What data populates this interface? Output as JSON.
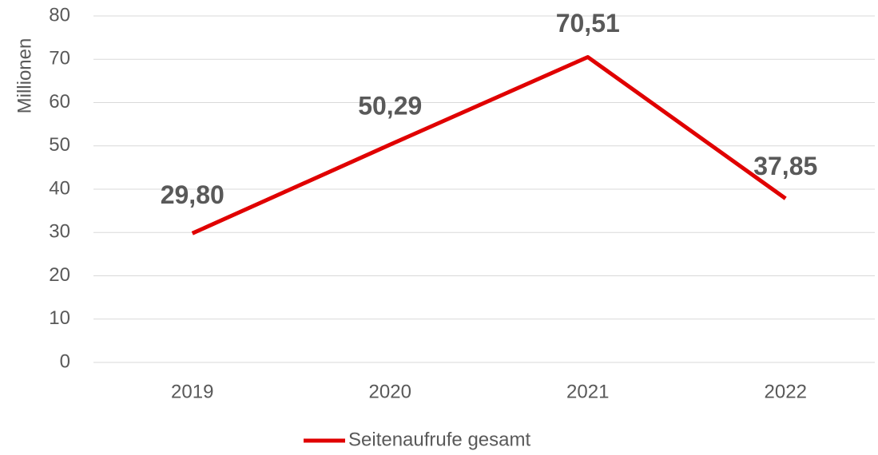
{
  "chart_data": {
    "type": "line",
    "y_label": "Millionen",
    "categories": [
      "2019",
      "2020",
      "2021",
      "2022"
    ],
    "series": [
      {
        "name": "Seitenaufrufe gesamt",
        "color": "#e00000",
        "values": [
          29.8,
          50.29,
          70.51,
          37.85
        ],
        "value_labels": [
          "29,80",
          "50,29",
          "70,51",
          "37,85"
        ]
      }
    ],
    "ylim": [
      0,
      80
    ],
    "yticks": [
      0,
      10,
      20,
      30,
      40,
      50,
      60,
      70,
      80
    ],
    "grid": true,
    "legend": "bottom"
  }
}
